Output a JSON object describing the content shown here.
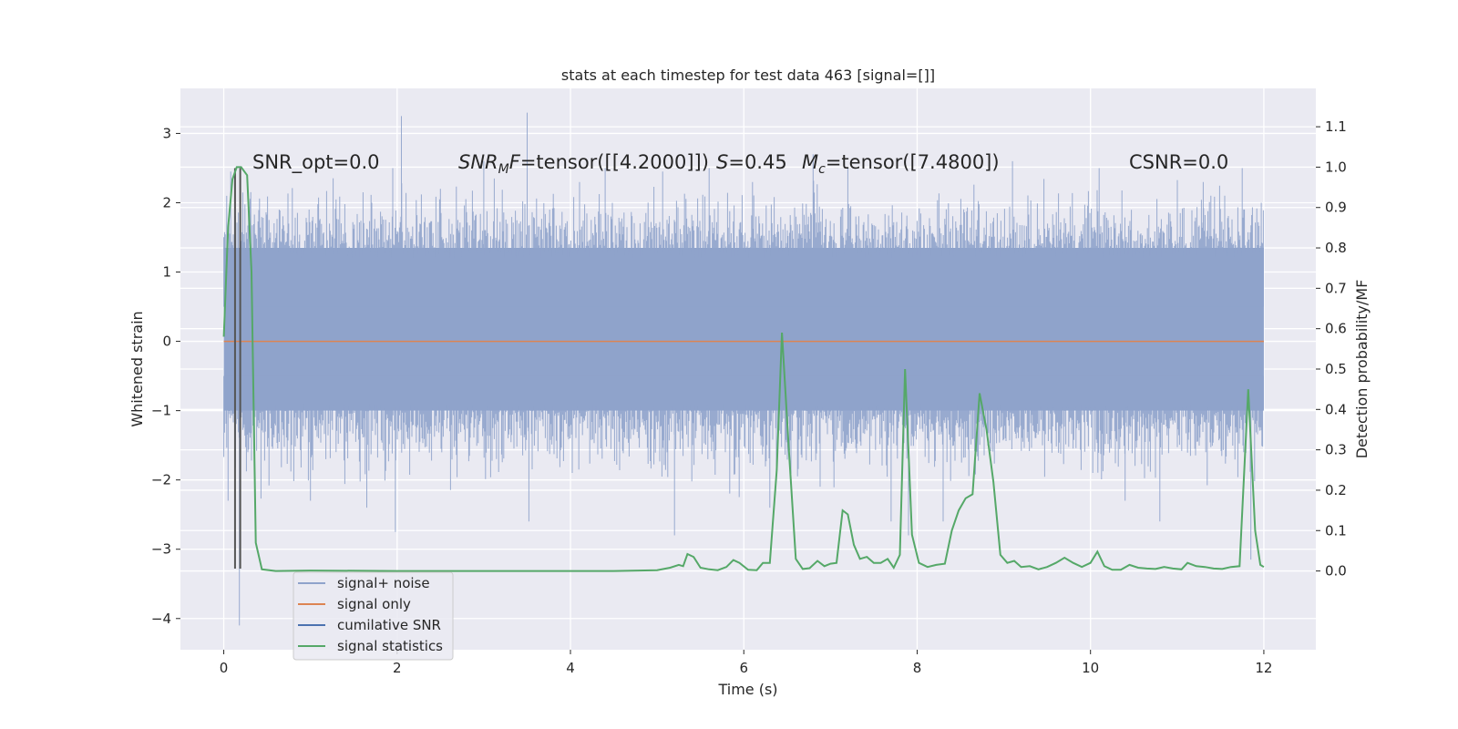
{
  "chart_data": {
    "type": "line",
    "title": "stats at each timestep for test data 463 [signal=[]]",
    "xlabel": "Time (s)",
    "ylabel": "Whitened strain",
    "y2label": "Detection probability/MF",
    "xlim": [
      -0.5,
      12.6
    ],
    "ylim": [
      -4.45,
      3.65
    ],
    "y2lim": [
      -0.195,
      1.195
    ],
    "xticks": [
      0,
      2,
      4,
      6,
      8,
      10,
      12
    ],
    "yticks": [
      -4,
      -3,
      -2,
      -1,
      0,
      1,
      2,
      3
    ],
    "y2ticks": [
      0.0,
      0.1,
      0.2,
      0.3,
      0.4,
      0.5,
      0.6,
      0.7,
      0.8,
      0.9,
      1.0,
      1.1
    ],
    "xtick_labels": [
      "0",
      "2",
      "4",
      "6",
      "8",
      "10",
      "12"
    ],
    "ytick_labels": [
      "−4",
      "−3",
      "−2",
      "−1",
      "0",
      "1",
      "2",
      "3"
    ],
    "y2tick_labels": [
      "0.0",
      "0.1",
      "0.2",
      "0.3",
      "0.4",
      "0.5",
      "0.6",
      "0.7",
      "0.8",
      "0.9",
      "1.0",
      "1.1"
    ],
    "grid": true,
    "legend_position": "lower-left",
    "annotations": [
      {
        "text": "SNR_opt=0.0"
      },
      {
        "text": "SNR_M F=tensor([[4.2000]])"
      },
      {
        "text": "S=0.45"
      },
      {
        "text": "M_c=tensor([7.4800])"
      },
      {
        "text": "CSNR=0.0"
      }
    ],
    "series": [
      {
        "name": "signal+ noise",
        "color": "#8fa3cb",
        "x_range": [
          0,
          12
        ],
        "core_band": [
          -1.0,
          1.35
        ],
        "spikes": [
          [
            0.05,
            -2.3
          ],
          [
            0.08,
            2.45
          ],
          [
            0.18,
            -4.1
          ],
          [
            1.0,
            -2.3
          ],
          [
            1.65,
            -2.4
          ],
          [
            1.95,
            2.5
          ],
          [
            1.98,
            -2.75
          ],
          [
            2.05,
            3.25
          ],
          [
            2.5,
            2.2
          ],
          [
            3.0,
            2.6
          ],
          [
            3.5,
            3.3
          ],
          [
            3.52,
            -2.6
          ],
          [
            4.4,
            2.5
          ],
          [
            5.2,
            -2.8
          ],
          [
            5.6,
            2.5
          ],
          [
            6.1,
            2.3
          ],
          [
            6.3,
            -2.4
          ],
          [
            6.8,
            2.7
          ],
          [
            7.2,
            2.5
          ],
          [
            7.7,
            -2.6
          ],
          [
            7.9,
            -2.8
          ],
          [
            8.3,
            -2.6
          ],
          [
            9.1,
            2.6
          ],
          [
            10.1,
            2.5
          ],
          [
            10.4,
            -2.3
          ],
          [
            10.8,
            -2.6
          ],
          [
            11.3,
            2.3
          ],
          [
            11.75,
            2.5
          ],
          [
            11.85,
            -3.15
          ],
          [
            11.97,
            2.0
          ]
        ]
      },
      {
        "name": "signal only",
        "color": "#dd8452",
        "values": [
          [
            0,
            0
          ],
          [
            12,
            0
          ]
        ]
      },
      {
        "name": "cumilative SNR",
        "color": "#4c72b0",
        "values": []
      },
      {
        "name": "signal statistics",
        "color": "#55a868",
        "axis": "right",
        "values": [
          [
            0,
            0.58
          ],
          [
            0.05,
            0.85
          ],
          [
            0.1,
            0.97
          ],
          [
            0.15,
            1.0
          ],
          [
            0.2,
            1.0
          ],
          [
            0.27,
            0.98
          ],
          [
            0.32,
            0.74
          ],
          [
            0.37,
            0.07
          ],
          [
            0.44,
            0.004
          ],
          [
            0.6,
            0.0
          ],
          [
            1.0,
            0.001
          ],
          [
            2.0,
            0.0
          ],
          [
            3.0,
            0.0
          ],
          [
            4.0,
            0.0
          ],
          [
            4.5,
            0.0
          ],
          [
            5.0,
            0.002
          ],
          [
            5.15,
            0.008
          ],
          [
            5.25,
            0.015
          ],
          [
            5.3,
            0.012
          ],
          [
            5.35,
            0.042
          ],
          [
            5.42,
            0.035
          ],
          [
            5.5,
            0.008
          ],
          [
            5.6,
            0.004
          ],
          [
            5.7,
            0.002
          ],
          [
            5.8,
            0.01
          ],
          [
            5.88,
            0.027
          ],
          [
            5.95,
            0.02
          ],
          [
            6.05,
            0.003
          ],
          [
            6.15,
            0.002
          ],
          [
            6.22,
            0.02
          ],
          [
            6.3,
            0.02
          ],
          [
            6.38,
            0.25
          ],
          [
            6.44,
            0.59
          ],
          [
            6.52,
            0.3
          ],
          [
            6.6,
            0.03
          ],
          [
            6.68,
            0.005
          ],
          [
            6.76,
            0.007
          ],
          [
            6.85,
            0.025
          ],
          [
            6.93,
            0.012
          ],
          [
            7.0,
            0.018
          ],
          [
            7.07,
            0.02
          ],
          [
            7.14,
            0.15
          ],
          [
            7.2,
            0.14
          ],
          [
            7.27,
            0.065
          ],
          [
            7.34,
            0.03
          ],
          [
            7.42,
            0.035
          ],
          [
            7.5,
            0.02
          ],
          [
            7.58,
            0.02
          ],
          [
            7.66,
            0.03
          ],
          [
            7.73,
            0.008
          ],
          [
            7.8,
            0.04
          ],
          [
            7.86,
            0.5
          ],
          [
            7.94,
            0.09
          ],
          [
            8.02,
            0.02
          ],
          [
            8.12,
            0.01
          ],
          [
            8.22,
            0.015
          ],
          [
            8.32,
            0.018
          ],
          [
            8.4,
            0.1
          ],
          [
            8.48,
            0.15
          ],
          [
            8.56,
            0.18
          ],
          [
            8.64,
            0.19
          ],
          [
            8.72,
            0.44
          ],
          [
            8.8,
            0.35
          ],
          [
            8.88,
            0.22
          ],
          [
            8.96,
            0.04
          ],
          [
            9.04,
            0.02
          ],
          [
            9.12,
            0.025
          ],
          [
            9.2,
            0.01
          ],
          [
            9.3,
            0.012
          ],
          [
            9.4,
            0.004
          ],
          [
            9.5,
            0.01
          ],
          [
            9.6,
            0.02
          ],
          [
            9.7,
            0.033
          ],
          [
            9.8,
            0.02
          ],
          [
            9.9,
            0.01
          ],
          [
            10.0,
            0.02
          ],
          [
            10.08,
            0.048
          ],
          [
            10.16,
            0.012
          ],
          [
            10.25,
            0.003
          ],
          [
            10.35,
            0.003
          ],
          [
            10.45,
            0.015
          ],
          [
            10.55,
            0.008
          ],
          [
            10.65,
            0.006
          ],
          [
            10.75,
            0.005
          ],
          [
            10.85,
            0.01
          ],
          [
            10.95,
            0.006
          ],
          [
            11.05,
            0.004
          ],
          [
            11.12,
            0.02
          ],
          [
            11.22,
            0.012
          ],
          [
            11.32,
            0.01
          ],
          [
            11.42,
            0.006
          ],
          [
            11.52,
            0.005
          ],
          [
            11.62,
            0.01
          ],
          [
            11.72,
            0.012
          ],
          [
            11.82,
            0.45
          ],
          [
            11.9,
            0.1
          ],
          [
            11.96,
            0.015
          ],
          [
            12.0,
            0.01
          ]
        ]
      }
    ],
    "vertical_lines": [
      {
        "x": 0.13,
        "ymin": -3.28,
        "ymax": 2.5,
        "color": "#555555"
      },
      {
        "x": 0.19,
        "ymin": -3.28,
        "ymax": 2.5,
        "color": "#555555"
      }
    ]
  }
}
